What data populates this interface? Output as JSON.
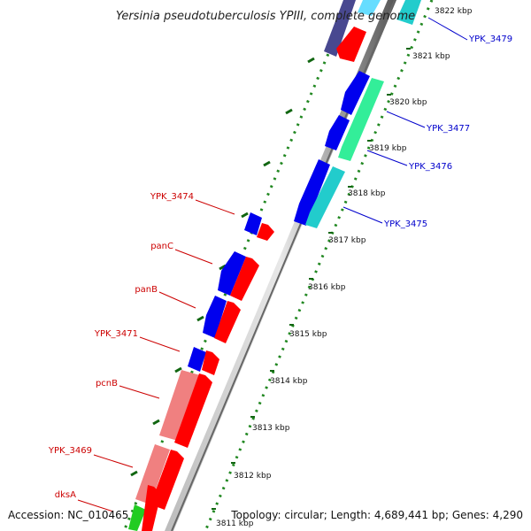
{
  "title": "Yersinia pseudotuberculosis YPIII, complete genome",
  "accession_text": "Accession: NC_010465",
  "topology_text": "Topology: circular; Length: 4,689,441 bp; Genes: 4,290",
  "ticks": [
    "3811 kbp",
    "3812 kbp",
    "3813 kbp",
    "3814 kbp",
    "3815 kbp",
    "3816 kbp",
    "3817 kbp",
    "3818 kbp",
    "3819 kbp",
    "3820 kbp",
    "3821 kbp",
    "3822 kbp"
  ],
  "left_labels": [
    "YPK_3474",
    "panC",
    "panB",
    "YPK_3471",
    "pcnB",
    "YPK_3469",
    "dksA"
  ],
  "right_labels": [
    "YPK_3479",
    "YPK_3477",
    "YPK_3476",
    "YPK_3475"
  ],
  "colors": {
    "forward_label": "#cc0000",
    "reverse_label": "#0000cc",
    "blue": "#0000ee",
    "red": "#ff0000",
    "salmon": "#f08080",
    "green": "#22cc22",
    "cyan": "#22cccc",
    "seagreen": "#33ee99",
    "slate": "#484890",
    "lightcyan": "#66ddff",
    "backbone": "#888888",
    "dots": "#228822"
  }
}
